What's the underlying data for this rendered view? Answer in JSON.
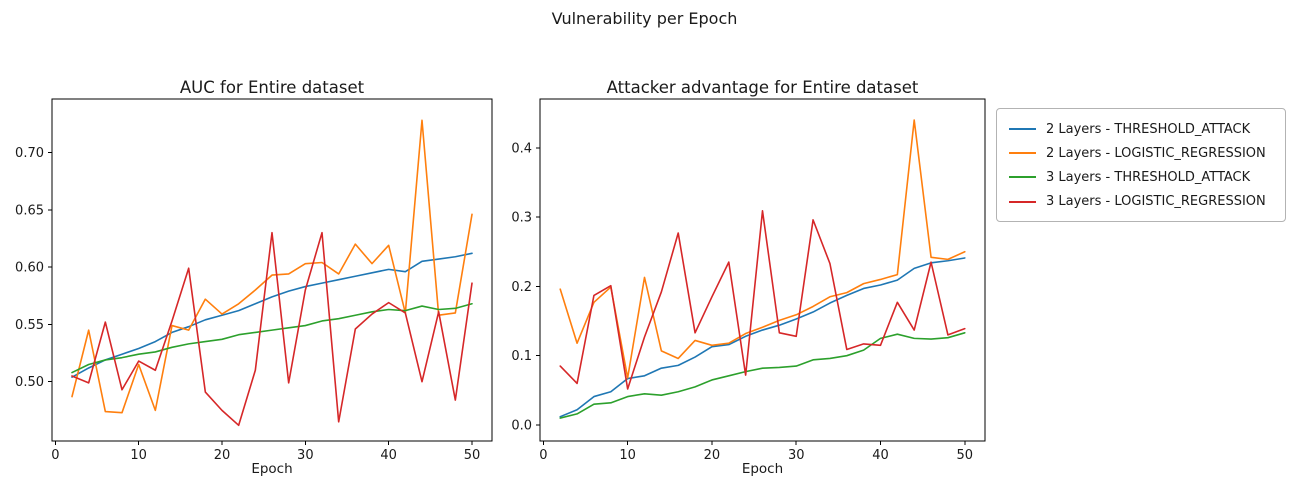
{
  "suptitle": "Vulnerability per Epoch",
  "legend": {
    "position": "outside-upper-right",
    "items": [
      {
        "label": "2 Layers - THRESHOLD_ATTACK",
        "color": "#1f77b4"
      },
      {
        "label": "2 Layers - LOGISTIC_REGRESSION",
        "color": "#ff7f0e"
      },
      {
        "label": "3 Layers - THRESHOLD_ATTACK",
        "color": "#2ca02c"
      },
      {
        "label": "3 Layers - LOGISTIC_REGRESSION",
        "color": "#d62728"
      }
    ]
  },
  "chart_data": [
    {
      "type": "line",
      "title": "AUC for Entire dataset",
      "xlabel": "Epoch",
      "grid": false,
      "xlim": [
        -0.4,
        52.4
      ],
      "ylim": [
        0.4483,
        0.7466
      ],
      "xticks": [
        0,
        10,
        20,
        30,
        40,
        50
      ],
      "xticklabels": [
        "0",
        "10",
        "20",
        "30",
        "40",
        "50"
      ],
      "yticks": [
        0.5,
        0.55,
        0.6,
        0.65,
        0.7
      ],
      "yticklabels": [
        "0.50",
        "0.55",
        "0.60",
        "0.65",
        "0.70"
      ],
      "x": [
        2,
        4,
        6,
        8,
        10,
        12,
        14,
        16,
        18,
        20,
        22,
        24,
        26,
        28,
        30,
        32,
        34,
        36,
        38,
        40,
        42,
        44,
        46,
        48,
        50
      ],
      "series": [
        {
          "name": "2 Layers - THRESHOLD_ATTACK",
          "color": "#1f77b4",
          "values": [
            0.504,
            0.512,
            0.519,
            0.524,
            0.529,
            0.535,
            0.543,
            0.548,
            0.554,
            0.558,
            0.562,
            0.568,
            0.574,
            0.579,
            0.583,
            0.586,
            0.589,
            0.592,
            0.595,
            0.598,
            0.596,
            0.605,
            0.607,
            0.609,
            0.612
          ]
        },
        {
          "name": "2 Layers - LOGISTIC_REGRESSION",
          "color": "#ff7f0e",
          "values": [
            0.487,
            0.545,
            0.474,
            0.473,
            0.515,
            0.475,
            0.549,
            0.545,
            0.572,
            0.559,
            0.568,
            0.58,
            0.593,
            0.594,
            0.603,
            0.604,
            0.594,
            0.62,
            0.603,
            0.619,
            0.56,
            0.728,
            0.558,
            0.56,
            0.646
          ]
        },
        {
          "name": "3 Layers - THRESHOLD_ATTACK",
          "color": "#2ca02c",
          "values": [
            0.508,
            0.515,
            0.519,
            0.521,
            0.524,
            0.526,
            0.53,
            0.533,
            0.535,
            0.537,
            0.541,
            0.543,
            0.545,
            0.547,
            0.549,
            0.553,
            0.555,
            0.558,
            0.561,
            0.563,
            0.562,
            0.566,
            0.563,
            0.564,
            0.568
          ]
        },
        {
          "name": "3 Layers - LOGISTIC_REGRESSION",
          "color": "#d62728",
          "values": [
            0.505,
            0.499,
            0.552,
            0.493,
            0.518,
            0.51,
            0.553,
            0.599,
            0.491,
            0.475,
            0.462,
            0.51,
            0.63,
            0.499,
            0.58,
            0.63,
            0.465,
            0.546,
            0.559,
            0.569,
            0.56,
            0.5,
            0.561,
            0.484,
            0.586
          ]
        }
      ]
    },
    {
      "type": "line",
      "title": "Attacker advantage for Entire dataset",
      "xlabel": "Epoch",
      "grid": false,
      "xlim": [
        -0.4,
        52.4
      ],
      "ylim": [
        -0.0231,
        0.4704
      ],
      "xticks": [
        0,
        10,
        20,
        30,
        40,
        50
      ],
      "xticklabels": [
        "0",
        "10",
        "20",
        "30",
        "40",
        "50"
      ],
      "yticks": [
        0.0,
        0.1,
        0.2,
        0.3,
        0.4
      ],
      "yticklabels": [
        "0.0",
        "0.1",
        "0.2",
        "0.3",
        "0.4"
      ],
      "x": [
        2,
        4,
        6,
        8,
        10,
        12,
        14,
        16,
        18,
        20,
        22,
        24,
        26,
        28,
        30,
        32,
        34,
        36,
        38,
        40,
        42,
        44,
        46,
        48,
        50
      ],
      "series": [
        {
          "name": "2 Layers - THRESHOLD_ATTACK",
          "color": "#1f77b4",
          "values": [
            0.012,
            0.022,
            0.041,
            0.048,
            0.067,
            0.071,
            0.082,
            0.086,
            0.098,
            0.113,
            0.116,
            0.128,
            0.137,
            0.144,
            0.153,
            0.163,
            0.176,
            0.187,
            0.197,
            0.202,
            0.209,
            0.226,
            0.234,
            0.237,
            0.241
          ]
        },
        {
          "name": "2 Layers - LOGISTIC_REGRESSION",
          "color": "#ff7f0e",
          "values": [
            0.196,
            0.118,
            0.177,
            0.199,
            0.068,
            0.213,
            0.107,
            0.096,
            0.122,
            0.115,
            0.118,
            0.132,
            0.141,
            0.151,
            0.159,
            0.171,
            0.185,
            0.191,
            0.204,
            0.21,
            0.217,
            0.44,
            0.242,
            0.239,
            0.25
          ]
        },
        {
          "name": "3 Layers - THRESHOLD_ATTACK",
          "color": "#2ca02c",
          "values": [
            0.01,
            0.016,
            0.03,
            0.032,
            0.041,
            0.045,
            0.043,
            0.048,
            0.055,
            0.065,
            0.071,
            0.077,
            0.082,
            0.083,
            0.085,
            0.094,
            0.096,
            0.1,
            0.108,
            0.125,
            0.131,
            0.125,
            0.124,
            0.126,
            0.133
          ]
        },
        {
          "name": "3 Layers - LOGISTIC_REGRESSION",
          "color": "#d62728",
          "values": [
            0.085,
            0.06,
            0.187,
            0.201,
            0.052,
            0.127,
            0.192,
            0.277,
            0.133,
            0.185,
            0.235,
            0.072,
            0.309,
            0.133,
            0.128,
            0.296,
            0.233,
            0.109,
            0.117,
            0.115,
            0.177,
            0.137,
            0.235,
            0.13,
            0.139
          ]
        }
      ]
    }
  ]
}
